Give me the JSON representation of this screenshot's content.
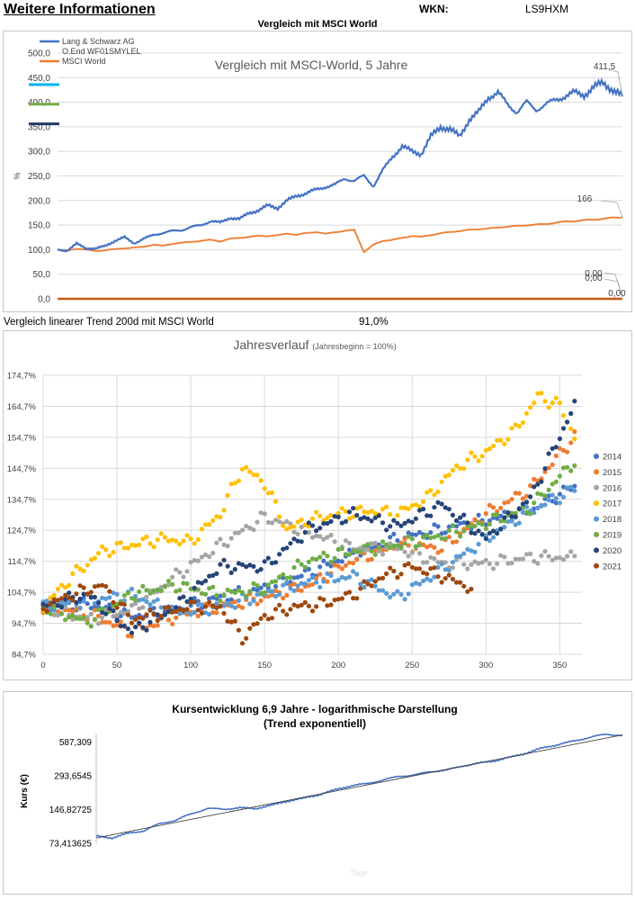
{
  "header": {
    "title": "Weitere Informationen",
    "wkn_label": "WKN:",
    "wkn_value": "LS9HXM",
    "subtitle": "Vergleich mit MSCI World"
  },
  "trend_row": {
    "label": "Vergleich linearer Trend 200d mit MSCI World",
    "value": "91,0%"
  },
  "colors": {
    "blue": "#4472c4",
    "orange": "#ed7d31",
    "brown": "#c55a11",
    "grid": "#d9d9d9"
  },
  "chart_data": [
    {
      "type": "line",
      "title": "Vergleich mit MSCI-World, 5 Jahre",
      "ylabel": "%",
      "ylim": [
        0,
        500
      ],
      "yticks": [
        "0,0",
        "50,0",
        "100,0",
        "150,0",
        "200,0",
        "250,0",
        "300,0",
        "350,0",
        "400,0",
        "450,0",
        "500,0"
      ],
      "legend": [
        {
          "name": "Lang & Schwarz AG",
          "color": "#4472c4"
        },
        {
          "name": "O.End WF01SMYLEL",
          "color": "#4472c4"
        },
        {
          "name": "MSCI World",
          "color": "#ed7d31"
        }
      ],
      "legend_swatches": [
        "#00b0f0",
        "#70ad47",
        "#1f3864"
      ],
      "series": [
        {
          "name": "Lang & Schwarz AG",
          "color": "#4472c4",
          "values": [
            100,
            98,
            112,
            103,
            102,
            108,
            118,
            125,
            113,
            122,
            130,
            134,
            138,
            140,
            146,
            150,
            158,
            155,
            165,
            162,
            175,
            180,
            190,
            185,
            200,
            210,
            215,
            222,
            228,
            232,
            245,
            240,
            250,
            230,
            262,
            290,
            310,
            300,
            295,
            330,
            350,
            345,
            330,
            365,
            380,
            410,
            420,
            395,
            380,
            400,
            385,
            395,
            405,
            412,
            420,
            415,
            430,
            440,
            425,
            411.5
          ]
        },
        {
          "name": "MSCI World",
          "color": "#ed7d31",
          "values": [
            100,
            98,
            102,
            100,
            97,
            99,
            101,
            103,
            104,
            106,
            110,
            108,
            112,
            114,
            116,
            118,
            120,
            117,
            122,
            124,
            126,
            128,
            128,
            129,
            133,
            130,
            134,
            136,
            132,
            136,
            138,
            140,
            95,
            110,
            118,
            120,
            124,
            128,
            126,
            130,
            133,
            136,
            138,
            140,
            142,
            143,
            145,
            147,
            148,
            150,
            151,
            152,
            155,
            157,
            158,
            160,
            161,
            163,
            165,
            166
          ]
        },
        {
          "name": "O.End WF01SMYLEL",
          "color": "#c55a11",
          "values": [
            0,
            0
          ]
        }
      ],
      "end_labels": [
        "411,5",
        "166",
        "0,00",
        "0,00",
        "0,00"
      ]
    },
    {
      "type": "scatter",
      "title": "Jahresverlauf",
      "subtitle": "(Jahresbeginn = 100%)",
      "xlim": [
        0,
        365
      ],
      "xticks": [
        "0",
        "50",
        "100",
        "150",
        "200",
        "250",
        "300",
        "350"
      ],
      "ylim": [
        84.7,
        174.7
      ],
      "yticks": [
        "84,7%",
        "94,7%",
        "104,7%",
        "114,7%",
        "124,7%",
        "134,7%",
        "144,7%",
        "154,7%",
        "164,7%",
        "174,7%"
      ],
      "series": [
        {
          "name": "2014",
          "color": "#4472c4",
          "x": [
            0,
            30,
            60,
            90,
            120,
            150,
            180,
            210,
            240,
            270,
            300,
            330,
            360
          ],
          "values": [
            100,
            101,
            97,
            99,
            103,
            106,
            111,
            117,
            122,
            125,
            128,
            131,
            139
          ]
        },
        {
          "name": "2015",
          "color": "#ed7d31",
          "x": [
            0,
            30,
            60,
            90,
            120,
            150,
            180,
            210,
            240,
            270,
            300,
            330,
            360
          ],
          "values": [
            100,
            98,
            92,
            97,
            100,
            103,
            107,
            115,
            120,
            119,
            130,
            138,
            155
          ]
        },
        {
          "name": "2016",
          "color": "#a5a5a5",
          "x": [
            0,
            30,
            60,
            90,
            120,
            150,
            180,
            210,
            240,
            270,
            300,
            330,
            360
          ],
          "values": [
            100,
            96,
            99,
            110,
            120,
            129,
            124,
            119,
            119,
            114,
            114,
            116,
            116
          ]
        },
        {
          "name": "2017",
          "color": "#ffc000",
          "x": [
            0,
            20,
            40,
            60,
            80,
            100,
            120,
            135,
            150,
            165,
            180,
            200,
            220,
            240,
            260,
            280,
            300,
            320,
            335,
            350,
            360
          ],
          "values": [
            100,
            110,
            118,
            120,
            122,
            121,
            130,
            145,
            140,
            125,
            128,
            130,
            131,
            130,
            135,
            145,
            150,
            157,
            168,
            165,
            155
          ]
        },
        {
          "name": "2018",
          "color": "#5b9bd5",
          "x": [
            0,
            30,
            60,
            90,
            120,
            150,
            180,
            210,
            240,
            270,
            300,
            330,
            360
          ],
          "values": [
            100,
            102,
            104,
            98,
            100,
            104,
            108,
            110,
            103,
            112,
            122,
            131,
            138
          ]
        },
        {
          "name": "2019",
          "color": "#70ad47",
          "x": [
            0,
            30,
            60,
            90,
            120,
            150,
            180,
            210,
            240,
            270,
            300,
            330,
            360
          ],
          "values": [
            100,
            95,
            104,
            107,
            104,
            106,
            115,
            118,
            120,
            123,
            127,
            132,
            147
          ]
        },
        {
          "name": "2020",
          "color": "#264478",
          "x": [
            0,
            30,
            60,
            90,
            120,
            150,
            180,
            210,
            240,
            270,
            300,
            330,
            360
          ],
          "values": [
            100,
            104,
            92,
            100,
            113,
            113,
            125,
            130,
            126,
            133,
            122,
            135,
            165
          ]
        },
        {
          "name": "2021",
          "color": "#9e480e",
          "x": [
            0,
            20,
            40,
            60,
            80,
            100,
            120,
            135,
            150,
            170,
            190,
            210,
            230,
            250,
            270,
            290
          ],
          "values": [
            100,
            104,
            107,
            96,
            98,
            100,
            100,
            90,
            97,
            100,
            101,
            104,
            110,
            113,
            110,
            106
          ]
        }
      ]
    },
    {
      "type": "line",
      "title": "Kursentwicklung 6,9 Jahre - logarithmische Darstellung",
      "subtitle": "(Trend exponentiell)",
      "ylabel": "Kurs (€)",
      "xlabel": "Tage",
      "yscale": "log",
      "ylim": [
        73.413625,
        700
      ],
      "yticks": [
        "73,413625",
        "146,82725",
        "293,6545",
        "587,309"
      ],
      "series": [
        {
          "name": "Kurs",
          "color": "#4472c4",
          "values": [
            85,
            82,
            90,
            95,
            110,
            118,
            135,
            150,
            148,
            152,
            150,
            160,
            175,
            185,
            200,
            220,
            240,
            250,
            270,
            290,
            300,
            320,
            330,
            360,
            380,
            400,
            430,
            470,
            520,
            560,
            600,
            650,
            690,
            670
          ]
        },
        {
          "name": "Trend",
          "color": "#404040",
          "values": [
            82,
            680
          ]
        }
      ]
    }
  ]
}
